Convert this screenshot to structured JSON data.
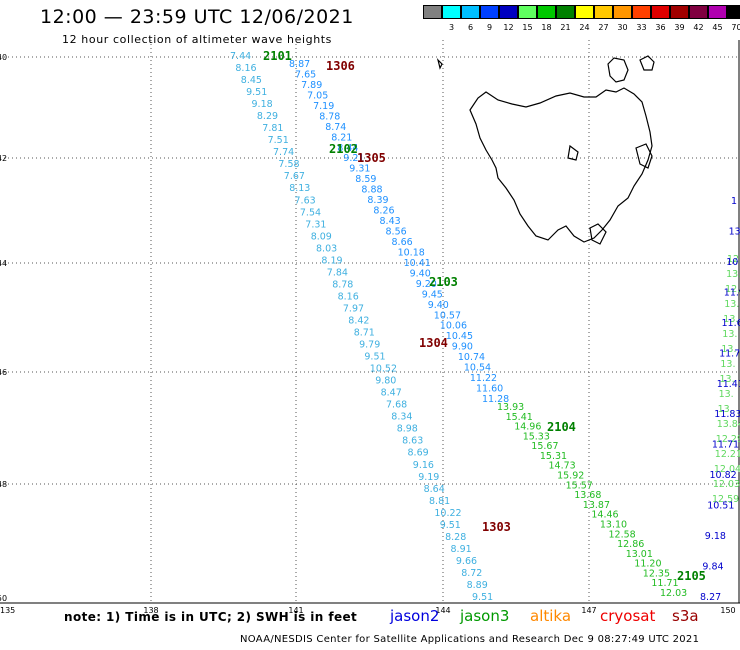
{
  "header": {
    "title": "12:00 — 23:59 UTC 12/06/2021",
    "subtitle": "12 hour collection of altimeter wave heights"
  },
  "legend": {
    "unit": "(ft)",
    "bins": [
      {
        "label": "",
        "color": "#808080"
      },
      {
        "label": "3",
        "color": "#00ffff"
      },
      {
        "label": "6",
        "color": "#00bfff"
      },
      {
        "label": "9",
        "color": "#0040ff"
      },
      {
        "label": "12",
        "color": "#0000c0"
      },
      {
        "label": "15",
        "color": "#60ff60"
      },
      {
        "label": "18",
        "color": "#00c800"
      },
      {
        "label": "21",
        "color": "#008000"
      },
      {
        "label": "24",
        "color": "#ffff00"
      },
      {
        "label": "27",
        "color": "#ffc800"
      },
      {
        "label": "30",
        "color": "#ff9600"
      },
      {
        "label": "33",
        "color": "#ff4000"
      },
      {
        "label": "36",
        "color": "#e00000"
      },
      {
        "label": "39",
        "color": "#a00000"
      },
      {
        "label": "42",
        "color": "#800040"
      },
      {
        "label": "45",
        "color": "#b000b0"
      },
      {
        "label": "70",
        "color": "#000000"
      }
    ]
  },
  "axes": {
    "lon_labels": [
      "135",
      "138",
      "141",
      "144",
      "147",
      "150"
    ],
    "lat_labels": [
      "-40",
      "-42",
      "-44",
      "-46",
      "-48",
      "-50"
    ]
  },
  "passes": [
    {
      "label": "2101",
      "color": "#008000"
    },
    {
      "label": "1306",
      "color": "#800000"
    },
    {
      "label": "2102",
      "color": "#008000"
    },
    {
      "label": "1305",
      "color": "#800000"
    },
    {
      "label": "2103",
      "color": "#008000"
    },
    {
      "label": "1304",
      "color": "#800000"
    },
    {
      "label": "2104",
      "color": "#008000"
    },
    {
      "label": "1303",
      "color": "#800000"
    },
    {
      "label": "2105",
      "color": "#008000"
    }
  ],
  "tracks": {
    "track_a": {
      "color": "#3fb0e0",
      "values": [
        "7.44",
        "8.16",
        "8.45",
        "9.51",
        "9.18",
        "8.29",
        "7.81",
        "7.51",
        "7.74",
        "7.58",
        "7.67",
        "8.13",
        "7.63",
        "7.54",
        "7.31",
        "8.09",
        "8.03",
        "8.19",
        "7.84",
        "8.78",
        "8.16",
        "7.97",
        "8.42",
        "8.71",
        "9.79",
        "9.51",
        "10.52",
        "9.80",
        "8.47",
        "7.68",
        "8.34",
        "8.98",
        "8.63",
        "8.69",
        "9.16",
        "9.19",
        "8.64",
        "8.81",
        "10.22",
        "9.51",
        "8.28",
        "8.91",
        "9.66",
        "8.72",
        "8.89",
        "9.51"
      ]
    },
    "track_b": {
      "color": "#1e90ff",
      "values": [
        "8.87",
        "7.65",
        "7.89",
        "7.05",
        "7.19",
        "8.78",
        "8.74",
        "8.21",
        "8.44",
        "9.21",
        "9.31",
        "8.59",
        "8.88",
        "8.39",
        "8.26",
        "8.43",
        "8.56",
        "8.66",
        "10.18",
        "10.41",
        "9.40",
        "9.20",
        "9.45",
        "9.40",
        "10.57",
        "10.06",
        "10.45",
        "9.90",
        "10.74",
        "10.54",
        "11.22",
        "11.60",
        "11.28"
      ]
    },
    "track_c": {
      "color": "#22bb22",
      "values": [
        "13.93",
        "15.41",
        "14.96",
        "15.33",
        "15.67",
        "15.31",
        "14.73",
        "15.92",
        "15.57",
        "13.68",
        "13.87",
        "14.46",
        "13.10",
        "12.58",
        "12.86",
        "13.01",
        "11.20",
        "12.35",
        "11.71",
        "12.03"
      ]
    },
    "track_d": {
      "color": "#5fd85f",
      "values": [
        "12.",
        "13.",
        "12.",
        "13.",
        "13.",
        "13.",
        "13.",
        "13.",
        "13.",
        "13.",
        "13.",
        "13.84",
        "12.29",
        "12.21",
        "12.04",
        "12.03",
        "12.59"
      ]
    },
    "track_e": {
      "color": "#0000cc",
      "values": [
        "1",
        "13",
        "10",
        "11.90",
        "11.67",
        "11.77",
        "11.41",
        "11.83",
        "11.71",
        "10.82",
        "10.51",
        "9.18",
        "9.84",
        "8.27"
      ]
    }
  },
  "footer": {
    "note": "note: 1) Time is in UTC; 2) SWH is in feet",
    "satellites": [
      {
        "name": "jason2",
        "color": "#0000dd"
      },
      {
        "name": "jason3",
        "color": "#009900"
      },
      {
        "name": "altika",
        "color": "#ff8800"
      },
      {
        "name": "cryosat",
        "color": "#ee0000"
      },
      {
        "name": "s3a",
        "color": "#990000"
      }
    ],
    "credit": "NOAA/NESDIS Center for Satellite Applications and Research    Dec  9 08:27:49 UTC 2021"
  }
}
